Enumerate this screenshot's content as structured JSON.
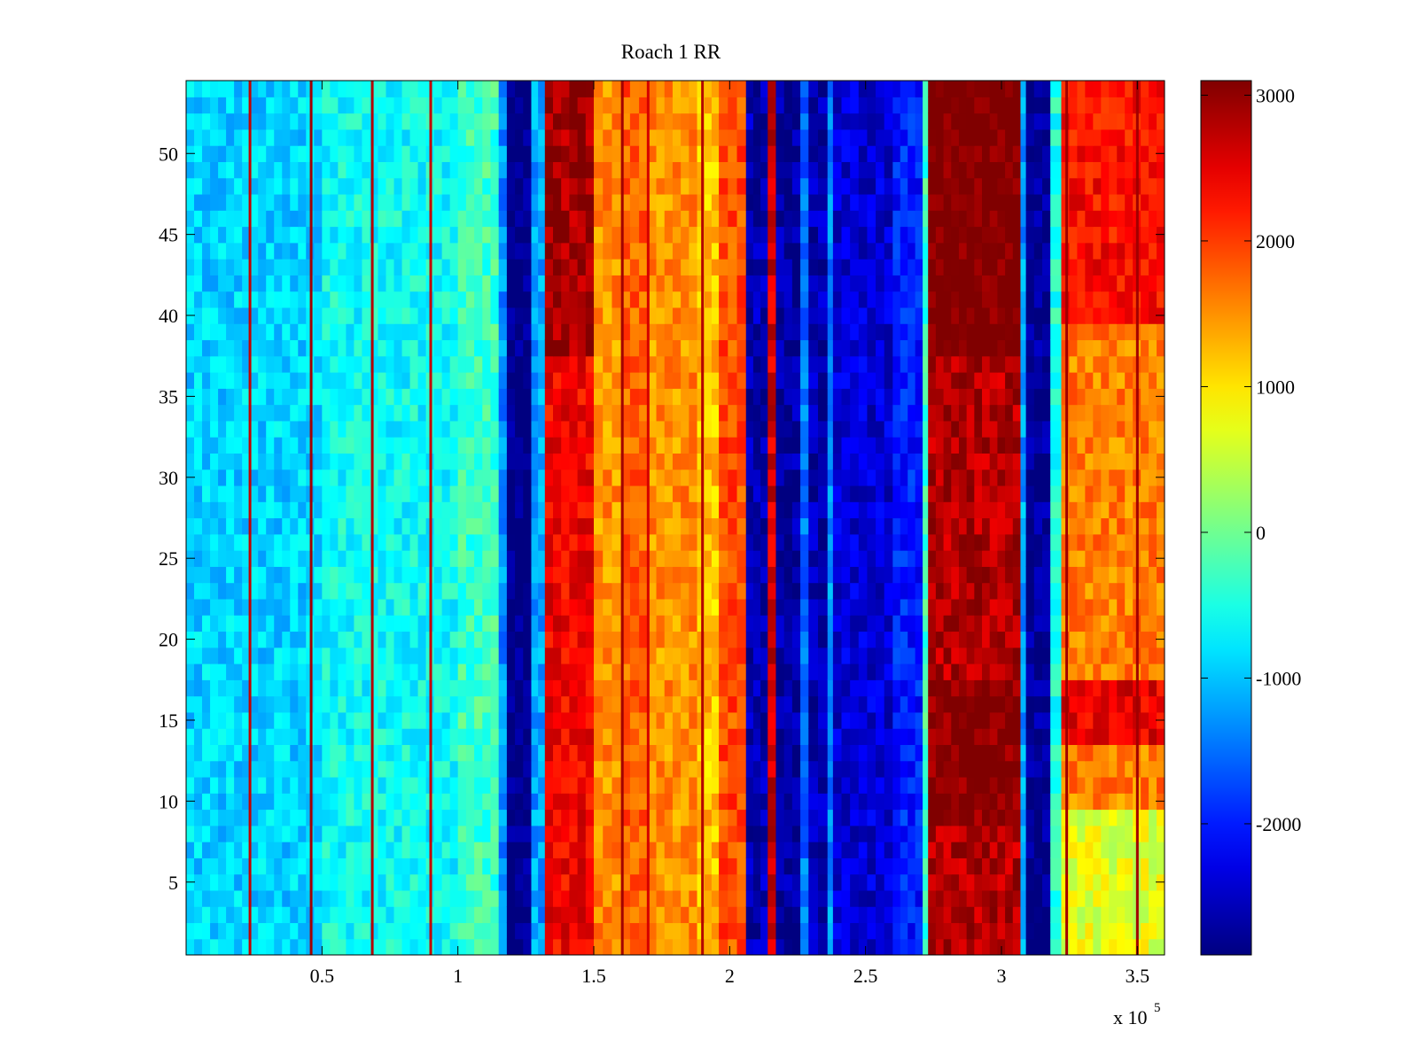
{
  "chart_data": {
    "type": "heatmap",
    "title": "Roach 1 RR",
    "xlabel": "",
    "ylabel": "",
    "x_exponent_label": {
      "base": "x 10",
      "exponent": "5"
    },
    "xlim": [
      0,
      3.6
    ],
    "ylim": [
      0.5,
      54.5
    ],
    "x_ticks": [
      0.5,
      1,
      1.5,
      2,
      2.5,
      3,
      3.5
    ],
    "x_tick_labels": [
      "0.5",
      "1",
      "1.5",
      "2",
      "2.5",
      "3",
      "3.5"
    ],
    "y_ticks": [
      5,
      10,
      15,
      20,
      25,
      30,
      35,
      40,
      45,
      50
    ],
    "y_tick_labels": [
      "5",
      "10",
      "15",
      "20",
      "25",
      "30",
      "35",
      "40",
      "45",
      "50"
    ],
    "rows": 54,
    "colormap": "jet",
    "colorbar": {
      "clim": [
        -2900,
        3100
      ],
      "ticks": [
        3000,
        2000,
        1000,
        0,
        -1000,
        -2000
      ],
      "tick_labels": [
        "3000",
        "2000",
        "1000",
        "0",
        "-1000",
        "-2000"
      ]
    },
    "bands": [
      {
        "x0": 0.0,
        "x1": 0.5,
        "value": -900
      },
      {
        "x0": 0.5,
        "x1": 1.0,
        "value": -600
      },
      {
        "x0": 1.0,
        "x1": 1.15,
        "value": -300
      },
      {
        "x0": 1.15,
        "x1": 1.18,
        "value": -1300
      },
      {
        "x0": 1.18,
        "x1": 1.27,
        "value": -2900
      },
      {
        "x0": 1.27,
        "x1": 1.32,
        "value": -1200
      },
      {
        "x0": 1.32,
        "x1": 1.5,
        "value": 2400
      },
      {
        "x0": 1.5,
        "x1": 1.6,
        "value": 1500
      },
      {
        "x0": 1.6,
        "x1": 1.7,
        "value": 1800
      },
      {
        "x0": 1.7,
        "x1": 1.88,
        "value": 1500
      },
      {
        "x0": 1.88,
        "x1": 1.96,
        "value": 1200
      },
      {
        "x0": 1.96,
        "x1": 2.06,
        "value": 1900
      },
      {
        "x0": 2.06,
        "x1": 2.14,
        "value": -2600
      },
      {
        "x0": 2.14,
        "x1": 2.17,
        "value": 2600
      },
      {
        "x0": 2.17,
        "x1": 2.26,
        "value": -2700
      },
      {
        "x0": 2.26,
        "x1": 2.29,
        "value": -1500
      },
      {
        "x0": 2.29,
        "x1": 2.36,
        "value": -2600
      },
      {
        "x0": 2.36,
        "x1": 2.38,
        "value": -1300
      },
      {
        "x0": 2.38,
        "x1": 2.6,
        "value": -2400
      },
      {
        "x0": 2.6,
        "x1": 2.71,
        "value": -2000
      },
      {
        "x0": 2.71,
        "x1": 2.73,
        "value": -300
      },
      {
        "x0": 2.73,
        "x1": 3.07,
        "value": 2800
      },
      {
        "x0": 3.07,
        "x1": 3.09,
        "value": -1200
      },
      {
        "x0": 3.09,
        "x1": 3.18,
        "value": -2800
      },
      {
        "x0": 3.18,
        "x1": 3.22,
        "value": -500
      },
      {
        "x0": 3.22,
        "x1": 3.6,
        "value": 1600
      }
    ],
    "row_modulation": [
      {
        "x0": 1.32,
        "x1": 1.5,
        "rows_from": 38,
        "rows_to": 54,
        "delta": 500
      },
      {
        "x0": 2.73,
        "x1": 3.07,
        "rows_from": 38,
        "rows_to": 54,
        "delta": 400
      },
      {
        "x0": 2.73,
        "x1": 3.07,
        "rows_from": 9,
        "rows_to": 17,
        "delta": 300
      },
      {
        "x0": 3.22,
        "x1": 3.6,
        "rows_from": 14,
        "rows_to": 17,
        "delta": 900
      },
      {
        "x0": 3.22,
        "x1": 3.6,
        "rows_from": 40,
        "rows_to": 54,
        "delta": 700
      },
      {
        "x0": 3.22,
        "x1": 3.6,
        "rows_from": 1,
        "rows_to": 9,
        "delta": -900
      }
    ],
    "thin_lines": [
      {
        "x": 0.235,
        "value": 2700
      },
      {
        "x": 0.46,
        "value": 2900
      },
      {
        "x": 0.685,
        "value": 2800
      },
      {
        "x": 0.9,
        "value": 2700
      },
      {
        "x": 1.605,
        "value": 2900
      },
      {
        "x": 1.7,
        "value": 2600
      },
      {
        "x": 1.9,
        "value": 2800
      },
      {
        "x": 3.24,
        "value": 2900
      },
      {
        "x": 3.5,
        "value": 2900
      }
    ]
  }
}
